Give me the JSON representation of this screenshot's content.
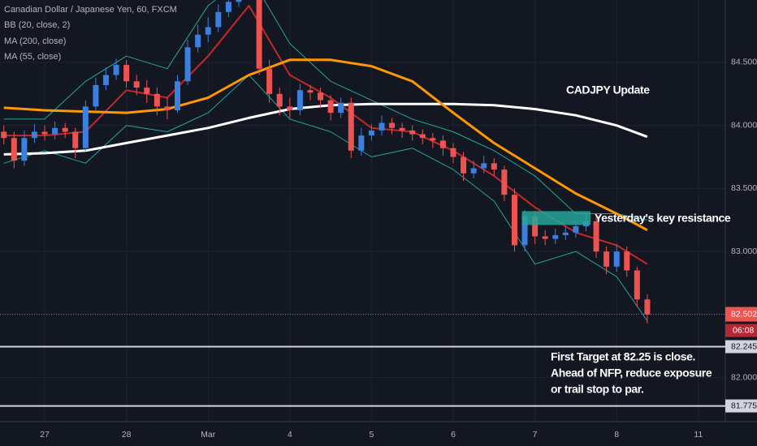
{
  "chart_data": {
    "type": "candlestick",
    "title": "Canadian Dollar / Japanese Yen, 60, FXCM",
    "x": [
      -0.5,
      -0.375,
      -0.25,
      -0.125,
      0,
      0.125,
      0.25,
      0.375,
      0.5,
      0.625,
      0.75,
      0.875,
      1,
      1.125,
      1.25,
      1.375,
      1.5,
      1.625,
      1.75,
      1.875,
      2,
      2.125,
      2.25,
      2.375,
      2.5,
      2.625,
      2.75,
      2.875,
      3,
      3.125,
      3.25,
      3.375,
      3.5,
      3.625,
      3.75,
      3.875,
      4,
      4.125,
      4.25,
      4.375,
      4.5,
      4.625,
      4.75,
      4.875,
      5,
      5.125,
      5.25,
      5.375,
      5.5,
      5.625,
      5.75,
      5.875,
      6,
      6.125,
      6.25,
      6.375,
      6.5,
      6.625,
      6.75,
      6.875,
      7,
      7.125,
      7.25,
      7.375
    ],
    "open": [
      83.95,
      83.9,
      83.72,
      83.9,
      83.95,
      83.93,
      83.98,
      83.95,
      83.82,
      84.15,
      84.32,
      84.4,
      84.48,
      84.35,
      84.3,
      84.25,
      84.15,
      84.12,
      84.35,
      84.62,
      84.72,
      84.78,
      84.9,
      84.98,
      85.05,
      85.1,
      84.45,
      84.25,
      84.15,
      84.12,
      84.28,
      84.26,
      84.2,
      84.1,
      84.18,
      83.8,
      83.92,
      83.96,
      84.02,
      83.98,
      83.96,
      83.93,
      83.9,
      83.88,
      83.82,
      83.75,
      83.62,
      83.66,
      83.7,
      83.65,
      83.45,
      83.05,
      83.28,
      83.12,
      83.1,
      83.13,
      83.15,
      83.2,
      83.24,
      83.0,
      82.88,
      83.0,
      82.85,
      82.62
    ],
    "high": [
      84.0,
      83.95,
      83.96,
      84.01,
      84.0,
      84.03,
      84.02,
      83.98,
      84.2,
      84.38,
      84.46,
      84.53,
      84.52,
      84.4,
      84.36,
      84.3,
      84.22,
      84.4,
      84.68,
      84.8,
      84.86,
      84.96,
      85.05,
      85.12,
      85.16,
      85.14,
      84.52,
      84.3,
      84.22,
      84.33,
      84.32,
      84.3,
      84.24,
      84.22,
      84.22,
      83.98,
      84.01,
      84.08,
      84.06,
      84.02,
      84.0,
      83.97,
      83.94,
      83.92,
      83.86,
      83.79,
      83.72,
      83.76,
      83.74,
      83.68,
      83.5,
      83.33,
      83.32,
      83.17,
      83.18,
      83.2,
      83.25,
      83.3,
      83.28,
      83.04,
      83.06,
      83.04,
      82.88,
      82.66
    ],
    "low": [
      83.85,
      83.66,
      83.68,
      83.86,
      83.88,
      83.89,
      83.9,
      83.74,
      83.8,
      84.12,
      84.28,
      84.36,
      84.3,
      84.24,
      84.18,
      84.08,
      84.05,
      84.1,
      84.32,
      84.58,
      84.66,
      84.74,
      84.86,
      84.94,
      85.0,
      84.4,
      84.18,
      84.08,
      84.06,
      84.08,
      84.2,
      84.14,
      84.04,
      84.06,
      83.74,
      83.76,
      83.88,
      83.92,
      83.93,
      83.9,
      83.88,
      83.85,
      83.82,
      83.76,
      83.7,
      83.56,
      83.58,
      83.62,
      83.6,
      83.4,
      83.0,
      83.0,
      83.06,
      83.05,
      83.06,
      83.09,
      83.11,
      83.16,
      82.95,
      82.82,
      82.84,
      82.8,
      82.56,
      82.43
    ],
    "close": [
      83.9,
      83.72,
      83.9,
      83.95,
      83.93,
      83.98,
      83.95,
      83.82,
      84.15,
      84.32,
      84.4,
      84.48,
      84.35,
      84.3,
      84.25,
      84.15,
      84.12,
      84.35,
      84.62,
      84.72,
      84.78,
      84.9,
      84.98,
      85.05,
      85.1,
      84.45,
      84.25,
      84.15,
      84.12,
      84.28,
      84.26,
      84.2,
      84.1,
      84.18,
      83.8,
      83.92,
      83.96,
      84.02,
      83.98,
      83.96,
      83.93,
      83.9,
      83.88,
      83.82,
      83.75,
      83.62,
      83.66,
      83.7,
      83.65,
      83.45,
      83.05,
      83.28,
      83.12,
      83.1,
      83.13,
      83.15,
      83.2,
      83.24,
      83.0,
      82.88,
      83.0,
      82.85,
      82.62,
      82.5
    ],
    "up_color": "#3b7fe0",
    "down_color": "#ef5350",
    "xlim": [
      -0.547,
      8.33
    ],
    "xticks": [
      {
        "value": 0,
        "label": "27"
      },
      {
        "value": 1,
        "label": "28"
      },
      {
        "value": 2,
        "label": "Mar"
      },
      {
        "value": 3,
        "label": "4"
      },
      {
        "value": 4,
        "label": "5"
      },
      {
        "value": 5,
        "label": "6"
      },
      {
        "value": 6,
        "label": "7"
      },
      {
        "value": 7,
        "label": "8"
      },
      {
        "value": 8,
        "label": "11"
      }
    ],
    "ylim": [
      81.65,
      84.995
    ],
    "yticks": [
      {
        "value": 84.5,
        "label": "84.500"
      },
      {
        "value": 84,
        "label": "84.000"
      },
      {
        "value": 83.5,
        "label": "83.500"
      },
      {
        "value": 83,
        "label": "83.000"
      },
      {
        "value": 82,
        "label": "82.000"
      }
    ],
    "grid": true,
    "line_x": [
      -0.5,
      0,
      0.5,
      1,
      1.5,
      2,
      2.5,
      3,
      3.5,
      4,
      4.5,
      5,
      5.5,
      6,
      6.5,
      7,
      7.375
    ],
    "overlays": [
      {
        "name": "BB (20, close, 2)",
        "color": "#26a69a",
        "basis_color": "#c62828",
        "basis": [
          83.92,
          83.92,
          83.95,
          84.28,
          84.22,
          84.55,
          84.95,
          84.4,
          84.22,
          83.98,
          83.95,
          83.8,
          83.6,
          83.35,
          83.15,
          83.05,
          82.9
        ],
        "upper": [
          84.05,
          84.05,
          84.35,
          84.55,
          84.45,
          84.95,
          85.2,
          84.65,
          84.35,
          84.2,
          84.05,
          83.95,
          83.8,
          83.6,
          83.3,
          83.3,
          83.25
        ],
        "lower": [
          83.7,
          83.8,
          83.7,
          84.0,
          83.95,
          84.1,
          84.4,
          84.05,
          83.95,
          83.75,
          83.82,
          83.65,
          83.4,
          82.9,
          83.0,
          82.8,
          82.45
        ]
      },
      {
        "name": "MA (200, close)",
        "color": "#ffffff",
        "values": [
          83.77,
          83.78,
          83.8,
          83.86,
          83.92,
          83.98,
          84.06,
          84.13,
          84.16,
          84.17,
          84.17,
          84.17,
          84.16,
          84.13,
          84.08,
          84.0,
          83.91
        ]
      },
      {
        "name": "MA (55, close)",
        "color": "#ff9800",
        "values": [
          84.14,
          84.12,
          84.11,
          84.1,
          84.13,
          84.22,
          84.4,
          84.52,
          84.52,
          84.47,
          84.35,
          84.1,
          83.86,
          83.66,
          83.46,
          83.3,
          83.17
        ]
      }
    ],
    "last_price": {
      "value": 82.502,
      "label": "82.502"
    },
    "countdown": "06:08",
    "levels": [
      {
        "value": 82.245,
        "label": "82.245"
      },
      {
        "value": 81.775,
        "label": "81.775"
      }
    ],
    "level_color": "#d1d4dc",
    "zone": {
      "x": [
        5.84,
        6.68
      ],
      "y": [
        83.21,
        83.32
      ],
      "color": "#26a69a",
      "text": "Yesterday's key resistance"
    },
    "annotations": [
      "CADJPY Update"
    ],
    "note": [
      "First Target at 82.25 is close.",
      "Ahead of NFP, reduce exposure",
      "or trail stop to par."
    ]
  }
}
